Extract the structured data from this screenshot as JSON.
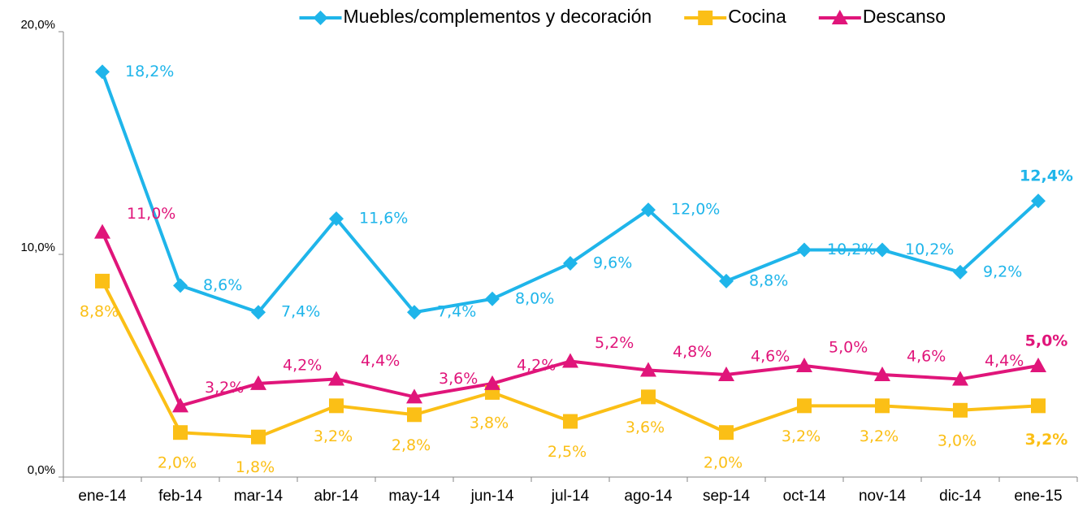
{
  "chart_data": {
    "type": "line",
    "categories": [
      "ene-14",
      "feb-14",
      "mar-14",
      "abr-14",
      "may-14",
      "jun-14",
      "jul-14",
      "ago-14",
      "sep-14",
      "oct-14",
      "nov-14",
      "dic-14",
      "ene-15"
    ],
    "ylim": [
      0,
      20
    ],
    "yticks": [
      {
        "value": 0,
        "label": "0,0%"
      },
      {
        "value": 10,
        "label": "10,0%"
      },
      {
        "value": 20,
        "label": "20,0%"
      }
    ],
    "grid": false,
    "legend": "top",
    "series": [
      {
        "name": "Muebles/complementos y decoración",
        "color": "#1fb5ea",
        "marker": "diamond",
        "values": [
          18.2,
          8.6,
          7.4,
          11.6,
          7.4,
          8.0,
          9.6,
          12.0,
          8.8,
          10.2,
          10.2,
          9.2,
          12.4
        ],
        "value_labels": [
          "18,2%",
          "8,6%",
          "7,4%",
          "11,6%",
          "7,4%",
          "8,0%",
          "9,6%",
          "12,0%",
          "8,8%",
          "10,2%",
          "10,2%",
          "9,2%",
          "12,4%"
        ]
      },
      {
        "name": "Cocina",
        "color": "#fbbf16",
        "marker": "square",
        "values": [
          8.8,
          2.0,
          1.8,
          3.2,
          2.8,
          3.8,
          2.5,
          3.6,
          2.0,
          3.2,
          3.2,
          3.0,
          3.2
        ],
        "value_labels": [
          "8,8%",
          "2,0%",
          "1,8%",
          "3,2%",
          "2,8%",
          "3,8%",
          "2,5%",
          "3,6%",
          "2,0%",
          "3,2%",
          "3,2%",
          "3,0%",
          "3,2%"
        ]
      },
      {
        "name": "Descanso",
        "color": "#e0157a",
        "marker": "triangle",
        "values": [
          11.0,
          3.2,
          4.2,
          4.4,
          3.6,
          4.2,
          5.2,
          4.8,
          4.6,
          5.0,
          4.6,
          4.4,
          5.0
        ],
        "value_labels": [
          "11,0%",
          "3,2%",
          "4,2%",
          "4,4%",
          "3,6%",
          "4,2%",
          "5,2%",
          "4,8%",
          "4,6%",
          "5,0%",
          "4,6%",
          "4,4%",
          "5,0%"
        ]
      }
    ]
  }
}
